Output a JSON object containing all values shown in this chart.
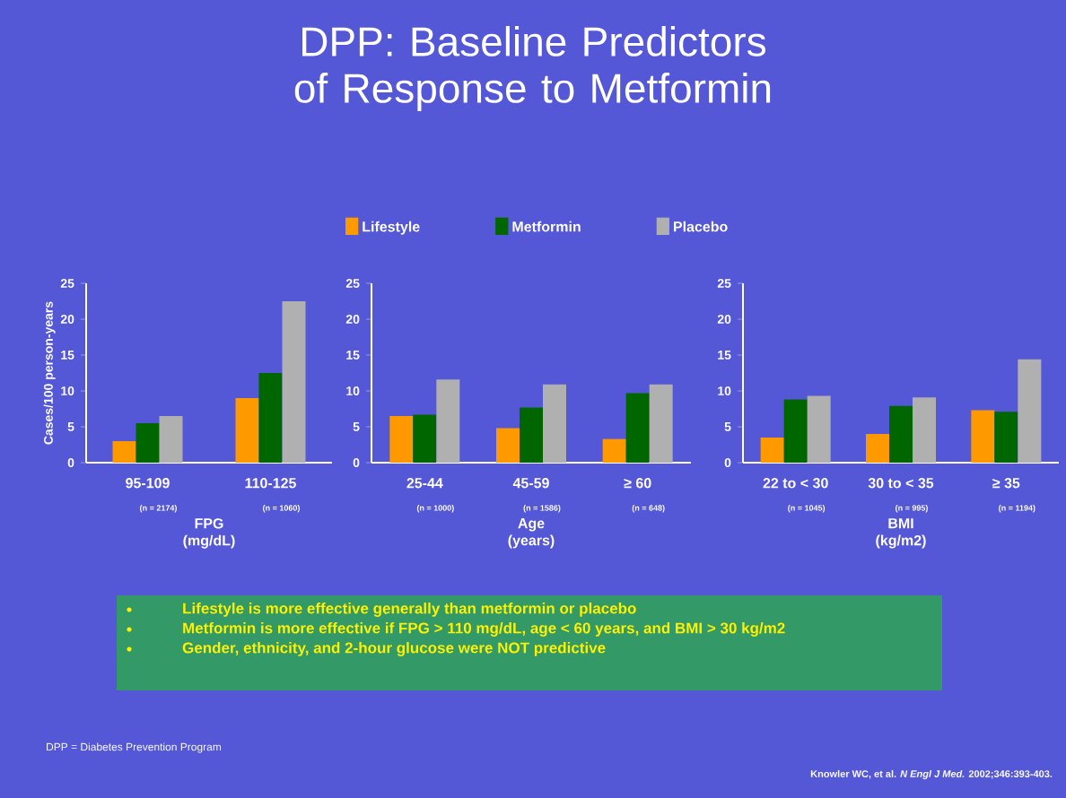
{
  "chart_data": [
    {
      "type": "bar",
      "ylabel": "Cases/100 person-years",
      "xlabel": "FPG (mg/dL)",
      "categories": [
        "95-109",
        "110-125"
      ],
      "ylim": [
        0,
        25
      ],
      "yticks": [
        0,
        5,
        10,
        15,
        20,
        25
      ],
      "legend": "top",
      "series": [
        {
          "name": "Lifestyle",
          "color": "#ff9900",
          "values": [
            3,
            9
          ]
        },
        {
          "name": "Metformin",
          "color": "#006600",
          "values": [
            5.5,
            12.5
          ]
        },
        {
          "name": "Placebo",
          "color": "#b0b0b0",
          "values": [
            6.5,
            22.5
          ]
        }
      ],
      "annotations": [
        "(n = 2174)",
        "(n = 1060)",
        "Lifestyle is more effective generally than metformin or placebo",
        "Metformin is more effective if FPG > 110 mg/dL, age < 60 years, and BMI > 30 kg/m2",
        "Gender, ethnicity, and 2-hour glucose were NOT predictive",
        "DPP = Diabetes Prevention Program",
        "Knowler WC, et al. *N Engl J Med.* 2002;346:393-403."
      ]
    },
    {
      "type": "bar",
      "title": "DPP: Baseline Predictors of Response to Metformin",
      "xlabel": "Age (years)",
      "categories": [
        "25-44",
        "45-59",
        "≥ 60"
      ],
      "ylim": [
        0,
        25
      ],
      "yticks": [
        0,
        5,
        10,
        15,
        20,
        25
      ],
      "series": [
        {
          "color": "#ff9900",
          "values": [
            6.5,
            4.8,
            3.3
          ]
        },
        {
          "color": "#006600",
          "values": [
            6.7,
            7.7,
            9.7
          ]
        },
        {
          "color": "#b0b0b0",
          "values": [
            11.6,
            10.9,
            10.9
          ]
        }
      ],
      "annotations": [
        "(n = 1000)",
        "(n = 1586)",
        "(n = 648)"
      ]
    },
    {
      "type": "bar",
      "xlabel": "BMI (kg/m2)",
      "categories": [
        "22 to < 30",
        "30 to < 35",
        "≥ 35"
      ],
      "ylim": [
        0,
        25
      ],
      "yticks": [
        0,
        5,
        10,
        15,
        20,
        25
      ],
      "series": [
        {
          "color": "#ff9900",
          "values": [
            3.5,
            4,
            7.3
          ]
        },
        {
          "color": "#006600",
          "values": [
            8.8,
            7.9,
            7.1
          ]
        },
        {
          "color": "#b0b0b0",
          "values": [
            9.3,
            9.1,
            14.4
          ]
        }
      ],
      "annotations": [
        "(n = 1045)",
        "(n = 995)",
        "(n = 1194)"
      ]
    }
  ]
}
